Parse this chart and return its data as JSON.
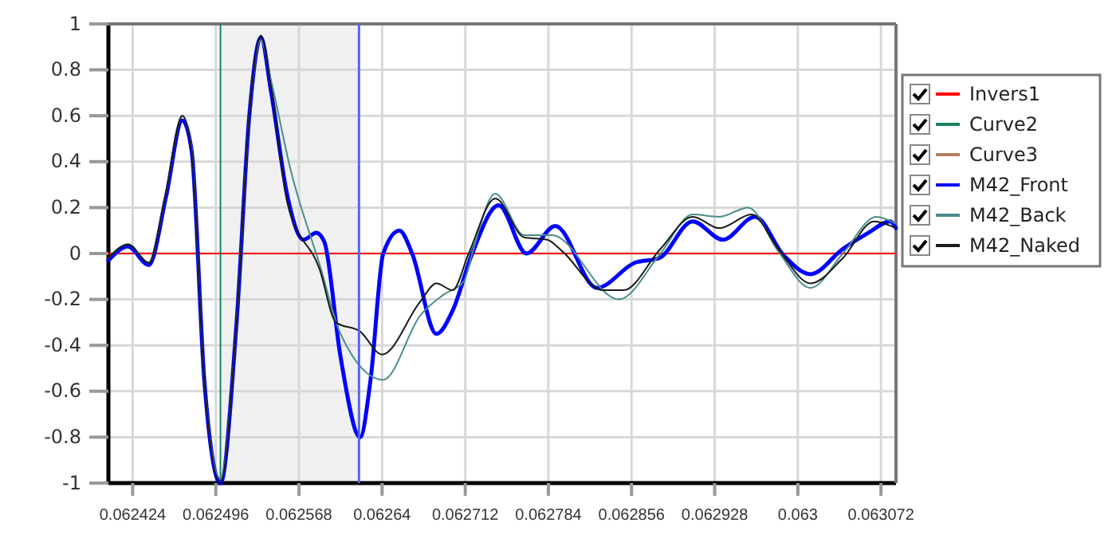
{
  "chart_data": {
    "type": "line",
    "xlim": [
      0.062403,
      0.063085
    ],
    "ylim": [
      -1,
      1
    ],
    "xticks": [
      {
        "value": 0.062424,
        "label": "0.062424"
      },
      {
        "value": 0.062496,
        "label": "0.062496"
      },
      {
        "value": 0.062568,
        "label": "0.062568"
      },
      {
        "value": 0.06264,
        "label": "0.06264"
      },
      {
        "value": 0.062712,
        "label": "0.062712"
      },
      {
        "value": 0.062784,
        "label": "0.062784"
      },
      {
        "value": 0.062856,
        "label": "0.062856"
      },
      {
        "value": 0.062928,
        "label": "0.062928"
      },
      {
        "value": 0.063,
        "label": "0.063"
      },
      {
        "value": 0.063072,
        "label": "0.063072"
      }
    ],
    "yticks": [
      -1,
      -0.8,
      -0.6,
      -0.4,
      -0.2,
      0,
      0.2,
      0.4,
      0.6,
      0.8,
      1
    ],
    "grid": true,
    "legend": "right",
    "line_style": "solid",
    "marker": "none",
    "ref_lines": [
      {
        "axis": "x",
        "value": 0.06262,
        "color": "#5566ee"
      }
    ],
    "bands": [
      {
        "axis": "x",
        "from": 0.0625,
        "to": 0.06262,
        "color": "#f0f0f0"
      }
    ],
    "series": [
      {
        "name": "Invers1",
        "color": "#ff0000",
        "x": [
          0.062403,
          0.063085
        ],
        "values": [
          0,
          0
        ]
      },
      {
        "name": "Curve2",
        "color": "#1a8060",
        "x": [
          0.0625,
          0.0625
        ],
        "values": [
          -1,
          1
        ]
      },
      {
        "name": "Curve3",
        "color": "#b08060"
      },
      {
        "name": "M42_Front",
        "color": "#0000ff",
        "x": [
          0.062403,
          0.06242,
          0.062438,
          0.062453,
          0.062467,
          0.062475,
          0.062486,
          0.0625,
          0.062514,
          0.062525,
          0.062535,
          0.062544,
          0.062558,
          0.062572,
          0.062583,
          0.06259,
          0.062604,
          0.062621,
          0.06263,
          0.062641,
          0.062655,
          0.062666,
          0.062687,
          0.062701,
          0.062718,
          0.062741,
          0.062765,
          0.06279,
          0.062826,
          0.062859,
          0.06288,
          0.062909,
          0.062935,
          0.062963,
          0.062988,
          0.063011,
          0.063039,
          0.063061,
          0.06308,
          0.063085
        ],
        "values": [
          -0.03,
          0.03,
          -0.05,
          0.25,
          0.58,
          0.45,
          -0.55,
          -1,
          -0.3,
          0.6,
          0.94,
          0.7,
          0.25,
          0.06,
          0.09,
          0.05,
          -0.45,
          -0.8,
          -0.55,
          0,
          0.1,
          0,
          -0.35,
          -0.25,
          0,
          0.21,
          0,
          0.12,
          -0.15,
          -0.04,
          -0.02,
          0.14,
          0.06,
          0.16,
          -0.01,
          -0.09,
          0.02,
          0.09,
          0.14,
          0.11
        ]
      },
      {
        "name": "M42_Back",
        "color": "#4a8c8c",
        "x": [
          0.062403,
          0.06242,
          0.062438,
          0.062453,
          0.062467,
          0.062475,
          0.062486,
          0.0625,
          0.062514,
          0.062525,
          0.062535,
          0.062544,
          0.062561,
          0.062586,
          0.062604,
          0.062641,
          0.062673,
          0.062693,
          0.062711,
          0.062718,
          0.062738,
          0.062763,
          0.062787,
          0.062845,
          0.062881,
          0.062909,
          0.062932,
          0.062957,
          0.062983,
          0.063011,
          0.063039,
          0.063068,
          0.063085
        ],
        "values": [
          -0.02,
          0.04,
          -0.04,
          0.27,
          0.6,
          0.46,
          -0.55,
          -0.98,
          -0.3,
          0.6,
          0.93,
          0.75,
          0.36,
          -0.05,
          -0.35,
          -0.55,
          -0.27,
          -0.18,
          -0.12,
          0,
          0.26,
          0.08,
          0.08,
          -0.2,
          0,
          0.17,
          0.16,
          0.2,
          0.01,
          -0.15,
          0,
          0.16,
          0.13
        ]
      },
      {
        "name": "M42_Naked",
        "color": "#1a1a1a",
        "x": [
          0.062403,
          0.06242,
          0.062438,
          0.062453,
          0.062467,
          0.062475,
          0.062486,
          0.0625,
          0.062514,
          0.062525,
          0.062535,
          0.062544,
          0.062558,
          0.062586,
          0.0626,
          0.062621,
          0.06264,
          0.062673,
          0.062687,
          0.062701,
          0.062715,
          0.062738,
          0.062763,
          0.062783,
          0.062796,
          0.062831,
          0.062849,
          0.062881,
          0.062909,
          0.062932,
          0.06296,
          0.062983,
          0.063011,
          0.063039,
          0.063066,
          0.063085
        ],
        "values": [
          -0.02,
          0.04,
          -0.04,
          0.27,
          0.6,
          0.45,
          -0.55,
          -1,
          -0.3,
          0.6,
          0.95,
          0.72,
          0.22,
          -0.07,
          -0.3,
          -0.34,
          -0.44,
          -0.21,
          -0.13,
          -0.16,
          0,
          0.24,
          0.07,
          0.06,
          0.01,
          -0.16,
          -0.16,
          0.02,
          0.16,
          0.11,
          0.17,
          0.02,
          -0.13,
          -0.02,
          0.14,
          0.11
        ]
      }
    ]
  }
}
